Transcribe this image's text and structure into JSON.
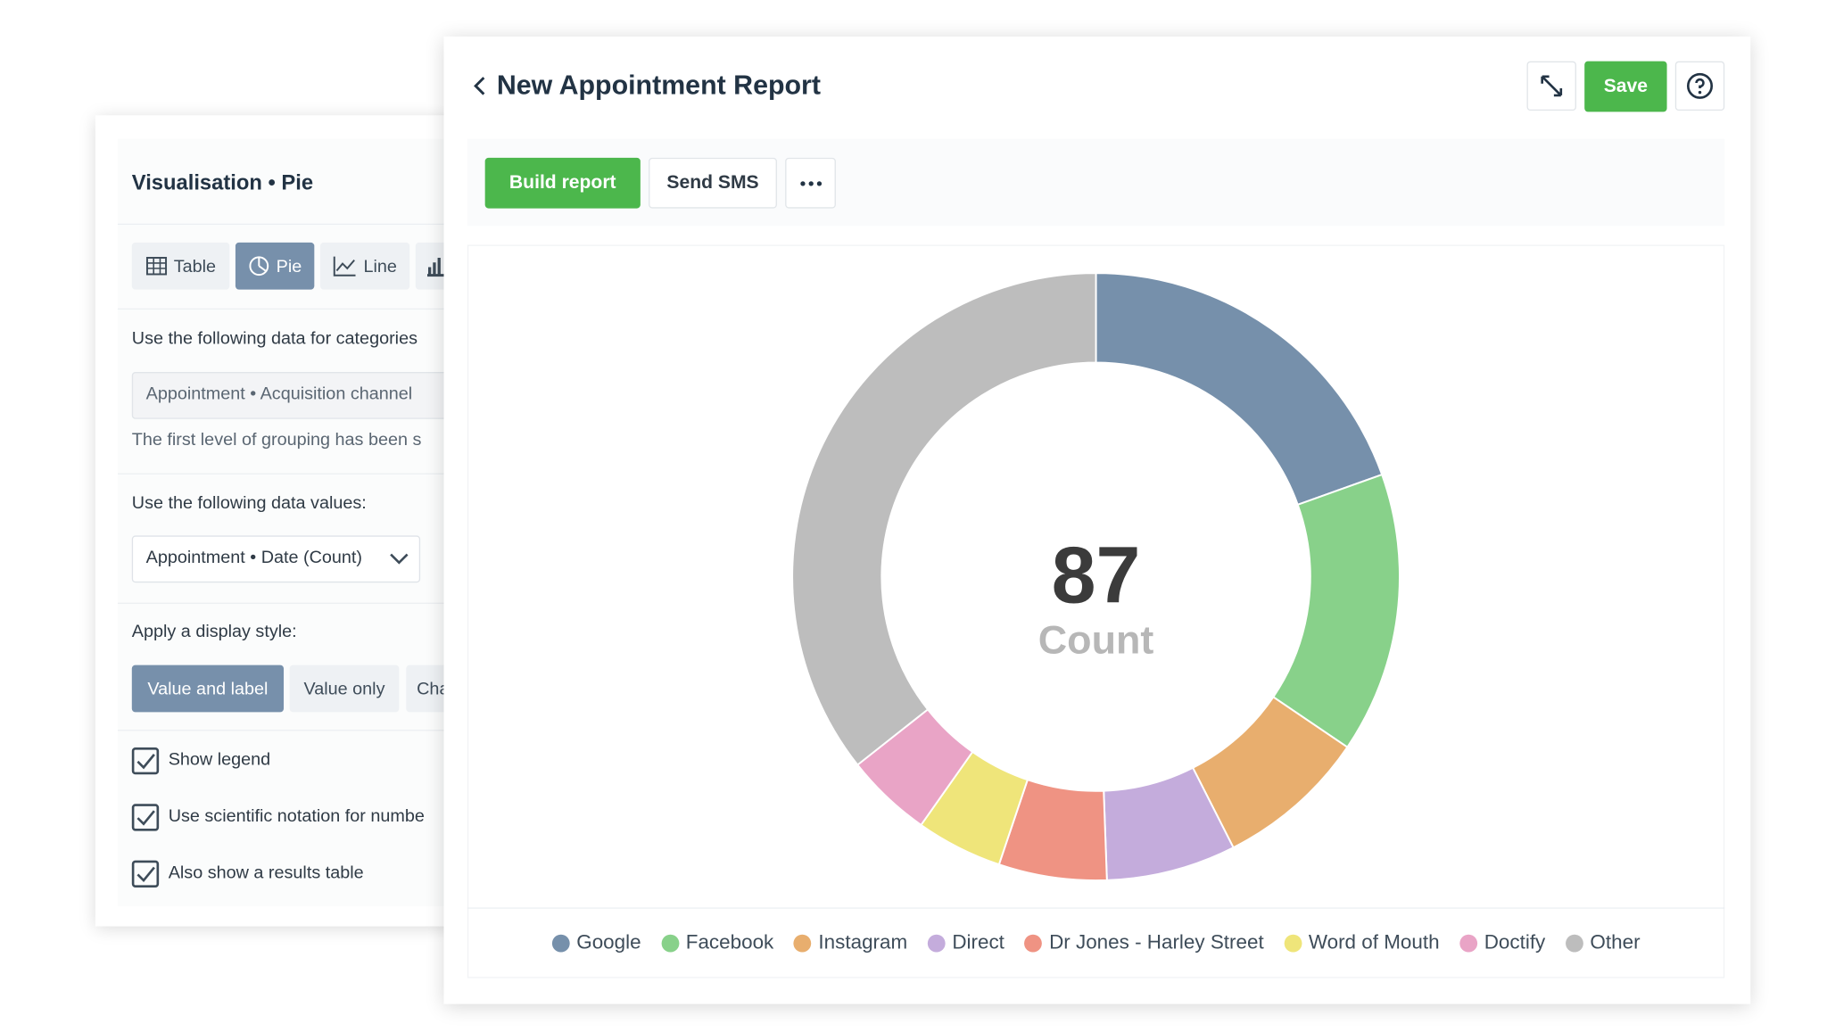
{
  "left_panel": {
    "title": "Visualisation • Pie",
    "tabs": [
      "Table",
      "Pie",
      "Line"
    ],
    "categories_label": "Use the following data for categories",
    "categories_field": "Appointment • Acquisition channel",
    "grouping_note": "The first level of grouping has been s",
    "values_label": "Use the following data values:",
    "values_field": "Appointment • Date (Count)",
    "style_label": "Apply a display style:",
    "styles": [
      "Value and label",
      "Value only",
      "Cha"
    ],
    "checkboxes": [
      "Show legend",
      "Use scientific notation for numbe",
      "Also show a results table"
    ]
  },
  "header": {
    "title": "New Appointment Report",
    "save": "Save"
  },
  "toolbar": {
    "buttons": [
      "Build report",
      "Send SMS"
    ]
  },
  "chart_data": {
    "type": "donut",
    "total": 87,
    "center_label": "Count",
    "categories": [
      "Google",
      "Facebook",
      "Instagram",
      "Direct",
      "Dr Jones - Harley Street",
      "Word of Mouth",
      "Doctify",
      "Other"
    ],
    "values": [
      17,
      13,
      7,
      6,
      5,
      4,
      4,
      31
    ],
    "colors": [
      "#7690ab",
      "#88d18a",
      "#e8ae6e",
      "#c4acdc",
      "#ef9383",
      "#efe57a",
      "#e9a4c6",
      "#bdbdbd"
    ]
  }
}
